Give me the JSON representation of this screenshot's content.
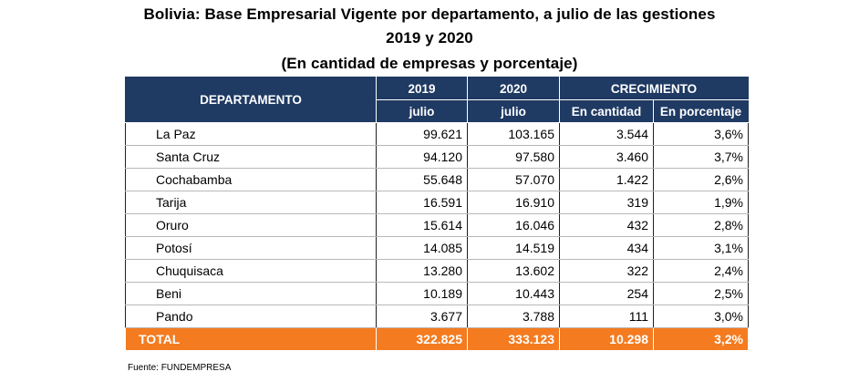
{
  "title": {
    "line1": "Bolivia: Base Empresarial Vigente por departamento, a julio de las gestiones",
    "line2": "2019 y 2020",
    "line3": "(En cantidad de empresas y porcentaje)"
  },
  "table": {
    "headers": {
      "departamento": "DEPARTAMENTO",
      "y2019": "2019",
      "y2020": "2020",
      "crecimiento": "CRECIMIENTO",
      "julio_2019": "julio",
      "julio_2020": "julio",
      "en_cantidad": "En cantidad",
      "en_porcentaje": "En porcentaje"
    },
    "rows": [
      {
        "departamento": "La Paz",
        "v2019": "99.621",
        "v2020": "103.165",
        "cantidad": "3.544",
        "porcentaje": "3,6%"
      },
      {
        "departamento": "Santa Cruz",
        "v2019": "94.120",
        "v2020": "97.580",
        "cantidad": "3.460",
        "porcentaje": "3,7%"
      },
      {
        "departamento": "Cochabamba",
        "v2019": "55.648",
        "v2020": "57.070",
        "cantidad": "1.422",
        "porcentaje": "2,6%"
      },
      {
        "departamento": "Tarija",
        "v2019": "16.591",
        "v2020": "16.910",
        "cantidad": "319",
        "porcentaje": "1,9%"
      },
      {
        "departamento": "Oruro",
        "v2019": "15.614",
        "v2020": "16.046",
        "cantidad": "432",
        "porcentaje": "2,8%"
      },
      {
        "departamento": "Potosí",
        "v2019": "14.085",
        "v2020": "14.519",
        "cantidad": "434",
        "porcentaje": "3,1%"
      },
      {
        "departamento": "Chuquisaca",
        "v2019": "13.280",
        "v2020": "13.602",
        "cantidad": "322",
        "porcentaje": "2,4%"
      },
      {
        "departamento": "Beni",
        "v2019": "10.189",
        "v2020": "10.443",
        "cantidad": "254",
        "porcentaje": "2,5%"
      },
      {
        "departamento": "Pando",
        "v2019": "3.677",
        "v2020": "3.788",
        "cantidad": "111",
        "porcentaje": "3,0%"
      }
    ],
    "total": {
      "departamento": "TOTAL",
      "v2019": "322.825",
      "v2020": "333.123",
      "cantidad": "10.298",
      "porcentaje": "3,2%"
    }
  },
  "source": "Fuente: FUNDEMPRESA",
  "colors": {
    "header_bg": "#1f3a63",
    "total_bg": "#f47b20"
  }
}
